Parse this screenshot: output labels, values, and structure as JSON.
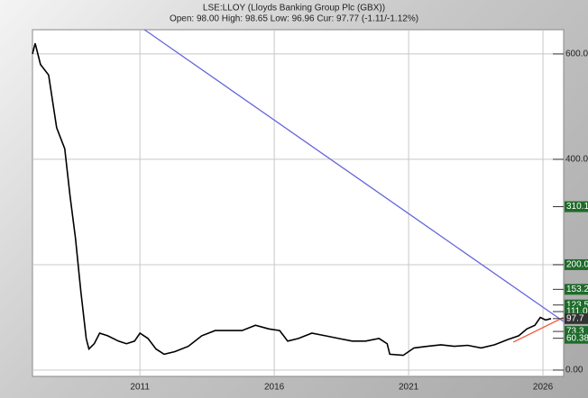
{
  "chart_data": {
    "type": "line",
    "title": "LSE:LLOY (Lloyds Banking Group Plc (GBX))",
    "subtitle": "Open: 98.00 High: 98.65 Low: 96.96 Cur: 97.77 (-1.11/-1.12%)",
    "x": [
      2007.0,
      2007.1,
      2007.3,
      2007.6,
      2007.9,
      2008.2,
      2008.4,
      2008.6,
      2008.8,
      2009.0,
      2009.1,
      2009.3,
      2009.5,
      2009.8,
      2010.2,
      2010.5,
      2010.8,
      2011.0,
      2011.3,
      2011.6,
      2011.9,
      2012.3,
      2012.8,
      2013.3,
      2013.8,
      2014.3,
      2014.8,
      2015.3,
      2015.8,
      2016.2,
      2016.5,
      2016.9,
      2017.4,
      2017.9,
      2018.4,
      2018.9,
      2019.4,
      2019.9,
      2020.2,
      2020.3,
      2020.8,
      2021.2,
      2021.7,
      2022.2,
      2022.7,
      2023.2,
      2023.7,
      2024.2,
      2024.7,
      2025.1,
      2025.4,
      2025.7,
      2025.9,
      2026.1,
      2026.3
    ],
    "values": [
      600,
      620,
      580,
      560,
      460,
      420,
      330,
      250,
      150,
      60,
      40,
      50,
      70,
      65,
      55,
      50,
      55,
      70,
      60,
      40,
      30,
      35,
      45,
      65,
      75,
      75,
      75,
      85,
      78,
      75,
      55,
      60,
      70,
      65,
      60,
      55,
      55,
      60,
      50,
      30,
      28,
      42,
      45,
      48,
      45,
      47,
      42,
      48,
      58,
      65,
      78,
      85,
      100,
      95,
      97.77
    ],
    "color": "#000000",
    "xlim": [
      2007.0,
      2026.77
    ],
    "ylim": [
      -12,
      646
    ],
    "xticks": [
      2011,
      2016,
      2021,
      2026
    ],
    "yticks": [
      {
        "value": 0,
        "label": "0.00"
      },
      {
        "value": 200,
        "label": "200.00"
      },
      {
        "value": 400,
        "label": "400.00"
      },
      {
        "value": 600,
        "label": "600.00"
      }
    ],
    "grid": true,
    "trendlines": [
      {
        "x": [
          2011.17,
          2026.77
        ],
        "y": [
          646,
          92
        ],
        "color": "#6666dd"
      },
      {
        "x": [
          2024.9,
          2026.77
        ],
        "y": [
          53,
          100
        ],
        "color": "#ee5533"
      }
    ],
    "price_markers": [
      {
        "value": 310.1,
        "label": "310.1",
        "color": "#1e6b2a"
      },
      {
        "value": 200.0,
        "label": "200.0",
        "color": "#1e6b2a"
      },
      {
        "value": 153.2,
        "label": "153.2",
        "color": "#1e6b2a"
      },
      {
        "value": 123.5,
        "label": "123.5",
        "color": "#1e6b2a"
      },
      {
        "value": 111.0,
        "label": "111.0",
        "color": "#1e6b2a"
      },
      {
        "value": 97.7,
        "label": "97.7",
        "color": "#333333"
      },
      {
        "value": 73.3,
        "label": "73.3",
        "color": "#1e6b2a"
      },
      {
        "value": 60.38,
        "label": "60.38",
        "color": "#1e6b2a"
      }
    ]
  }
}
